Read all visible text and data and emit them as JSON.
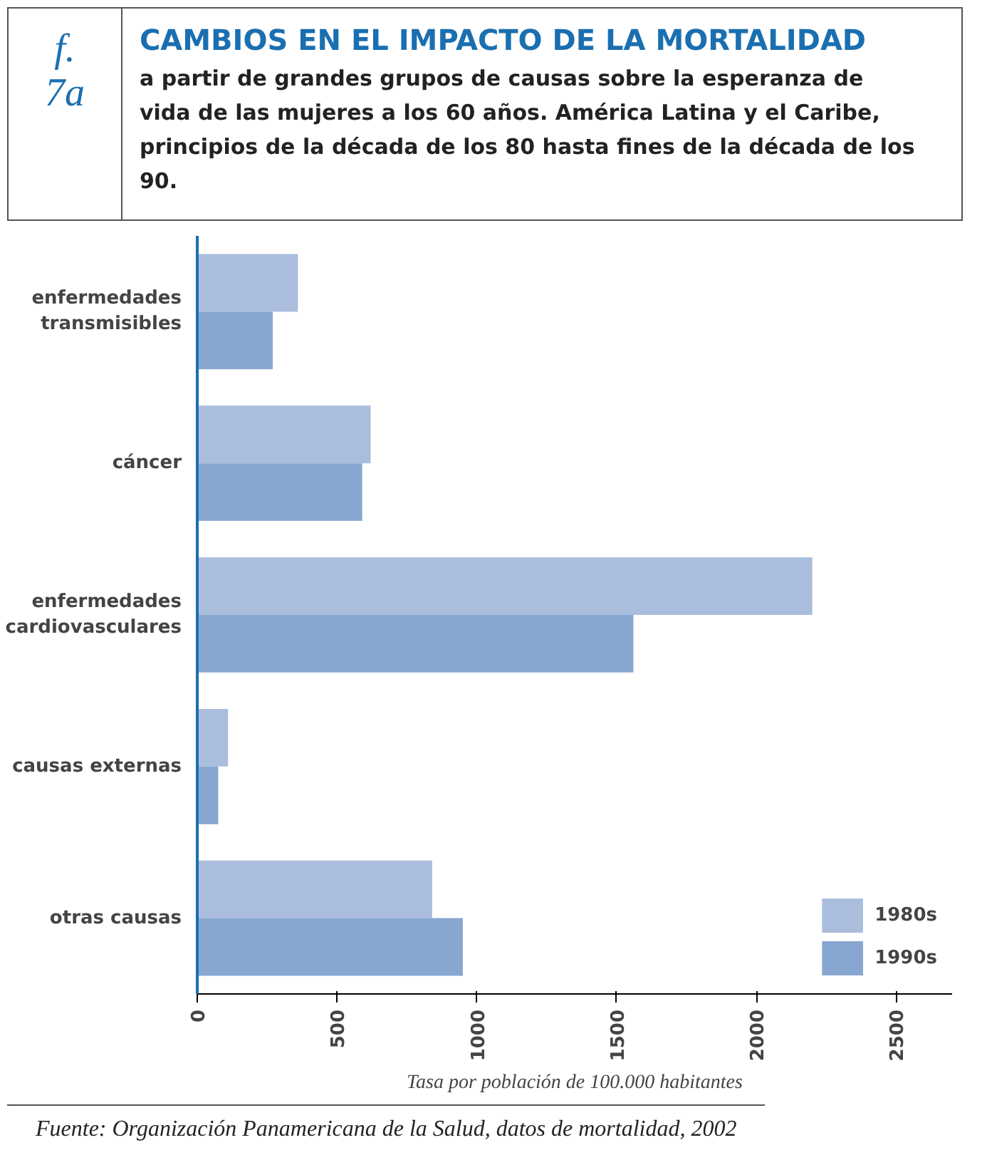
{
  "chart_data": {
    "type": "bar",
    "orientation": "horizontal",
    "title": "CAMBIOS EN EL IMPACTO DE LA MORTALIDAD",
    "subtitle": "a partir de grandes grupos de causas sobre la esperanza de vida de las mujeres a los 60 años. América Latina y el Caribe, principios de la década de los 80 hasta fines de la década de los 90.",
    "annotations": [
      "f. 7a",
      "Fuente: Organización Panamericana de la Salud, datos de mortalidad, 2002"
    ],
    "xlabel": "Tasa por población de 100.000 habitantes",
    "categories": [
      "enfermedades transmisibles",
      "cáncer",
      "enfermedades cardiovasculares",
      "causas externas",
      "otras causas"
    ],
    "series": [
      {
        "name": "1980s",
        "color": "#aabddd",
        "values": [
          360,
          620,
          2200,
          110,
          840
        ]
      },
      {
        "name": "1990s",
        "color": "#87a7d0",
        "values": [
          270,
          590,
          1560,
          75,
          950
        ]
      }
    ],
    "xlim": [
      0,
      2700
    ],
    "xticks": [
      0,
      500,
      1000,
      1500,
      2000,
      2500
    ],
    "grid": false,
    "legend": "bottom right"
  }
}
